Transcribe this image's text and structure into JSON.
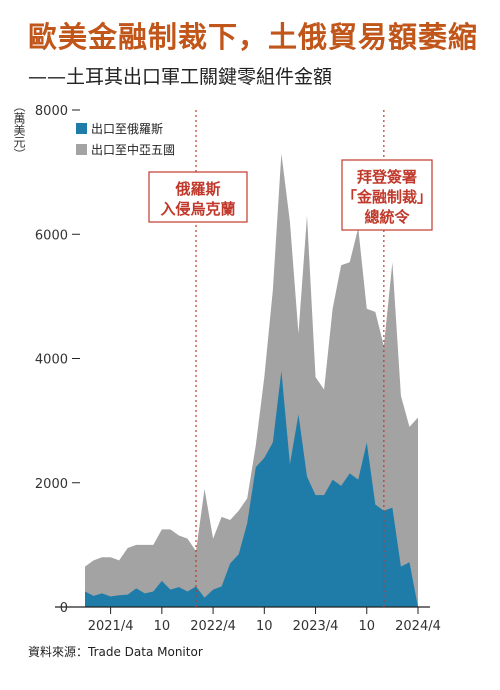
{
  "header": {
    "title": "歐美金融制裁下，土俄貿易額萎縮",
    "subtitle": "——土耳其出口軍工關鍵零組件金額"
  },
  "footer": {
    "source": "資料來源：Trade Data Monitor"
  },
  "chart_data": {
    "type": "area",
    "ylabel": "（萬美元）",
    "ylim": [
      0,
      8000
    ],
    "y_ticks": [
      0,
      2000,
      4000,
      6000,
      8000
    ],
    "y_tick_labels": [
      "0",
      "2000",
      "4000",
      "6000",
      "8000"
    ],
    "x_tick_labels": [
      "2021/4",
      "10",
      "2022/4",
      "10",
      "2023/4",
      "10",
      "2024/4"
    ],
    "x_tick_months": [
      "2021-04",
      "2021-10",
      "2022-04",
      "2022-10",
      "2023-04",
      "2023-10",
      "2024-04"
    ],
    "x": [
      "2021-01",
      "2021-02",
      "2021-03",
      "2021-04",
      "2021-05",
      "2021-06",
      "2021-07",
      "2021-08",
      "2021-09",
      "2021-10",
      "2021-11",
      "2021-12",
      "2022-01",
      "2022-02",
      "2022-03",
      "2022-04",
      "2022-05",
      "2022-06",
      "2022-07",
      "2022-08",
      "2022-09",
      "2022-10",
      "2022-11",
      "2022-12",
      "2023-01",
      "2023-02",
      "2023-03",
      "2023-04",
      "2023-05",
      "2023-06",
      "2023-07",
      "2023-08",
      "2023-09",
      "2023-10",
      "2023-11",
      "2023-12",
      "2024-01",
      "2024-02",
      "2024-03",
      "2024-04"
    ],
    "series": [
      {
        "name": "出口至俄羅斯",
        "color": "#1f7ca8",
        "values": [
          250,
          180,
          220,
          170,
          190,
          200,
          300,
          220,
          250,
          420,
          280,
          320,
          250,
          330,
          150,
          280,
          330,
          700,
          850,
          1350,
          2250,
          2400,
          2650,
          3800,
          2300,
          3100,
          2100,
          1800,
          1800,
          2050,
          1950,
          2150,
          2050,
          2650,
          1650,
          1550,
          1600,
          650,
          720,
          0
        ]
      },
      {
        "name": "出口至中亞五國",
        "color": "#a3a3a3",
        "values": [
          650,
          750,
          800,
          800,
          750,
          950,
          1000,
          1000,
          1000,
          1250,
          1250,
          1150,
          1100,
          900,
          1900,
          1100,
          1450,
          1400,
          1550,
          1750,
          2600,
          3700,
          5100,
          7300,
          6200,
          4400,
          6300,
          3700,
          3500,
          4800,
          5500,
          5550,
          6100,
          4800,
          4750,
          4200,
          5550,
          3400,
          2900,
          3050
        ]
      }
    ],
    "annotations": [
      {
        "label_lines": [
          "俄羅斯",
          "入侵烏克蘭"
        ],
        "date": "2022-02"
      },
      {
        "label_lines": [
          "拜登簽署",
          "「金融制裁」",
          "總統令"
        ],
        "date": "2023-12"
      }
    ],
    "legend": "top-left",
    "grid": false
  }
}
